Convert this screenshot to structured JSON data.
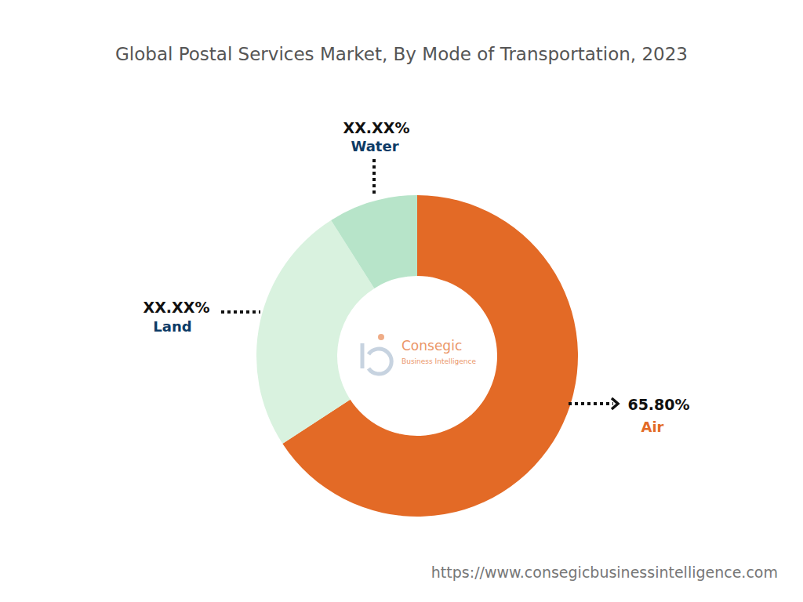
{
  "chart_data": {
    "type": "donut",
    "title": "Global Postal Services Market, By Mode of Transportation, 2023",
    "categories": [
      "Air",
      "Land",
      "Water"
    ],
    "values": [
      65.8,
      25.2,
      9.0
    ],
    "value_labels": [
      "65.80%",
      "XX.XX%",
      "XX.XX%"
    ],
    "colors": [
      "#e36a26",
      "#d9f2df",
      "#b7e4c9"
    ],
    "data_labels": true,
    "watermark": {
      "name": "Consegic",
      "subtitle": "Business Intelligence"
    },
    "source": "https://www.consegicbusinessintelligence.com"
  }
}
